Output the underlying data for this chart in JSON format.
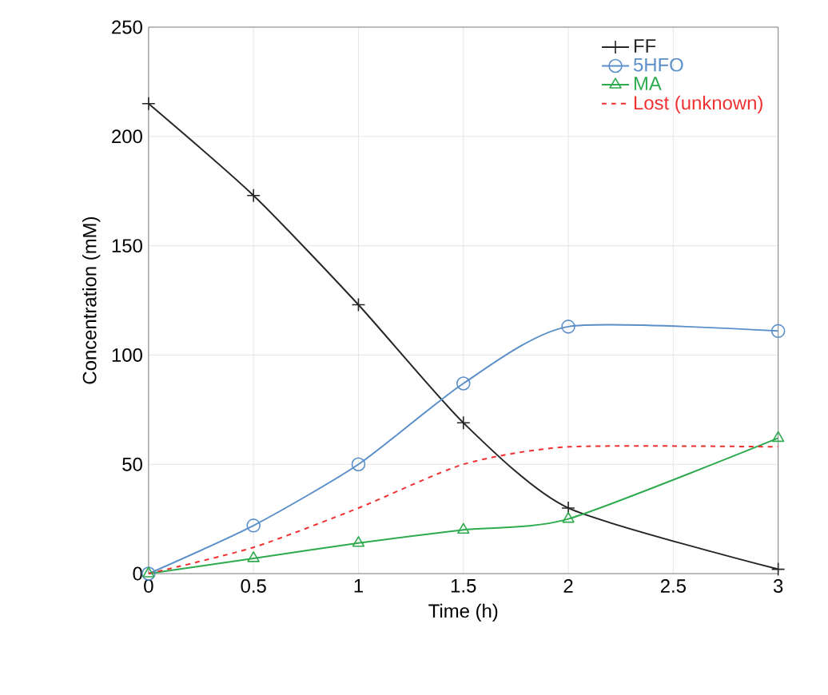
{
  "chart_data": {
    "type": "line",
    "xlabel": "Time (h)",
    "ylabel": "Concentration (mM)",
    "x": [
      0,
      0.5,
      1,
      1.5,
      2,
      3
    ],
    "series": [
      {
        "name": "FF",
        "color": "#262626",
        "values": [
          215,
          173,
          123,
          69,
          30,
          2
        ],
        "marker": "cross"
      },
      {
        "name": "5HFO",
        "color": "#5b8fc9",
        "values": [
          0,
          22,
          50,
          87,
          113,
          111
        ],
        "marker": "circle"
      },
      {
        "name": "MA",
        "color": "#2eaa4f",
        "values": [
          0,
          7,
          14,
          20,
          25,
          62
        ],
        "marker": "triangle"
      },
      {
        "name": "Lost (unknown)",
        "color": "#f03030",
        "values": [
          0,
          12,
          30,
          50,
          58,
          58
        ],
        "marker": "none",
        "line_style": "dashed"
      }
    ],
    "xlim": [
      0,
      3
    ],
    "ylim": [
      0,
      250
    ],
    "xticks": [
      0,
      0.5,
      1,
      1.5,
      2,
      2.5,
      3
    ],
    "yticks": [
      0,
      50,
      100,
      150,
      200,
      250
    ],
    "grid": true,
    "legend": "top right"
  }
}
